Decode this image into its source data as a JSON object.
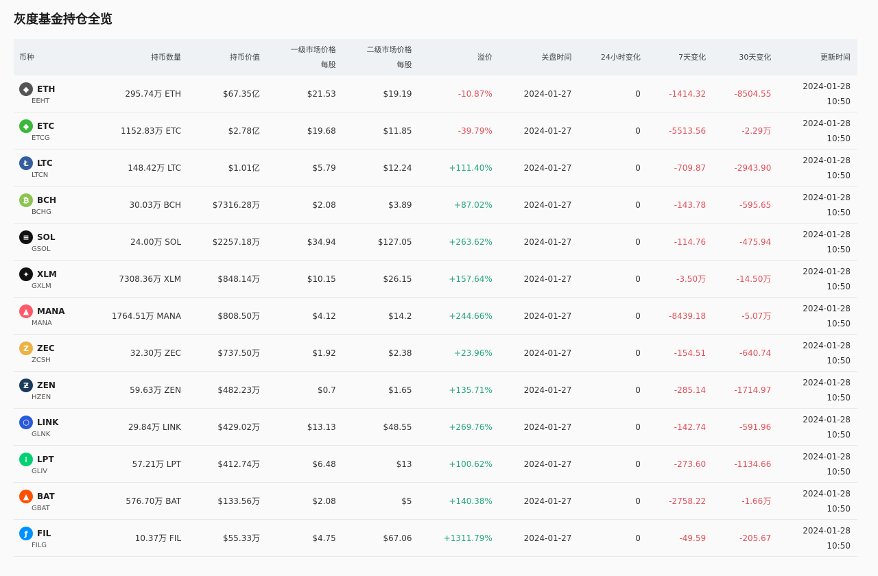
{
  "title": "灰度基金持仓全览",
  "colors": {
    "negative": "#e5505a",
    "positive": "#25a57f",
    "header_bg": "#eef2f5"
  },
  "headers": {
    "coin": "币种",
    "qty": "持币数量",
    "value": "持币价值",
    "primary": "一级市场价格",
    "primary_sub": "每股",
    "secondary": "二级市场价格",
    "secondary_sub": "每股",
    "premium": "溢价",
    "close": "关盘时间",
    "h24": "24小时变化",
    "d7": "7天变化",
    "d30": "30天变化",
    "updated": "更新时间"
  },
  "rows": [
    {
      "sym": "ETH",
      "sub": "EEHT",
      "icon": "ethereum-icon",
      "color": "#555555",
      "glyph": "◆",
      "qty": "295.74万 ETH",
      "value": "$67.35亿",
      "primary": "$21.53",
      "secondary": "$19.19",
      "premium": "-10.87%",
      "close": "2024-01-27",
      "h24": "0",
      "d7": "-1414.32",
      "d30": "-8504.55",
      "date": "2024-01-28",
      "time": "10:50"
    },
    {
      "sym": "ETC",
      "sub": "ETCG",
      "icon": "ethereum-classic-icon",
      "color": "#3ab83a",
      "glyph": "◆",
      "qty": "1152.83万 ETC",
      "value": "$2.78亿",
      "primary": "$19.68",
      "secondary": "$11.85",
      "premium": "-39.79%",
      "close": "2024-01-27",
      "h24": "0",
      "d7": "-5513.56",
      "d30": "-2.29万",
      "date": "2024-01-28",
      "time": "10:50"
    },
    {
      "sym": "LTC",
      "sub": "LTCN",
      "icon": "litecoin-icon",
      "color": "#345d9d",
      "glyph": "Ł",
      "qty": "148.42万 LTC",
      "value": "$1.01亿",
      "primary": "$5.79",
      "secondary": "$12.24",
      "premium": "+111.40%",
      "close": "2024-01-27",
      "h24": "0",
      "d7": "-709.87",
      "d30": "-2943.90",
      "date": "2024-01-28",
      "time": "10:50"
    },
    {
      "sym": "BCH",
      "sub": "BCHG",
      "icon": "bitcoin-cash-icon",
      "color": "#8dc351",
      "glyph": "₿",
      "qty": "30.03万 BCH",
      "value": "$7316.28万",
      "primary": "$2.08",
      "secondary": "$3.89",
      "premium": "+87.02%",
      "close": "2024-01-27",
      "h24": "0",
      "d7": "-143.78",
      "d30": "-595.65",
      "date": "2024-01-28",
      "time": "10:50"
    },
    {
      "sym": "SOL",
      "sub": "GSOL",
      "icon": "solana-icon",
      "color": "#111111",
      "glyph": "≡",
      "qty": "24.00万 SOL",
      "value": "$2257.18万",
      "primary": "$34.94",
      "secondary": "$127.05",
      "premium": "+263.62%",
      "close": "2024-01-27",
      "h24": "0",
      "d7": "-114.76",
      "d30": "-475.94",
      "date": "2024-01-28",
      "time": "10:50"
    },
    {
      "sym": "XLM",
      "sub": "GXLM",
      "icon": "stellar-icon",
      "color": "#111111",
      "glyph": "✦",
      "qty": "7308.36万 XLM",
      "value": "$848.14万",
      "primary": "$10.15",
      "secondary": "$26.15",
      "premium": "+157.64%",
      "close": "2024-01-27",
      "h24": "0",
      "d7": "-3.50万",
      "d30": "-14.50万",
      "date": "2024-01-28",
      "time": "10:50"
    },
    {
      "sym": "MANA",
      "sub": "MANA",
      "icon": "decentraland-icon",
      "color": "#ff5a6a",
      "glyph": "▲",
      "qty": "1764.51万 MANA",
      "value": "$808.50万",
      "primary": "$4.12",
      "secondary": "$14.2",
      "premium": "+244.66%",
      "close": "2024-01-27",
      "h24": "0",
      "d7": "-8439.18",
      "d30": "-5.07万",
      "date": "2024-01-28",
      "time": "10:50"
    },
    {
      "sym": "ZEC",
      "sub": "ZCSH",
      "icon": "zcash-icon",
      "color": "#ecb244",
      "glyph": "Z",
      "qty": "32.30万 ZEC",
      "value": "$737.50万",
      "primary": "$1.92",
      "secondary": "$2.38",
      "premium": "+23.96%",
      "close": "2024-01-27",
      "h24": "0",
      "d7": "-154.51",
      "d30": "-640.74",
      "date": "2024-01-28",
      "time": "10:50"
    },
    {
      "sym": "ZEN",
      "sub": "HZEN",
      "icon": "horizen-icon",
      "color": "#1a3c5a",
      "glyph": "Ƶ",
      "qty": "59.63万 ZEN",
      "value": "$482.23万",
      "primary": "$0.7",
      "secondary": "$1.65",
      "premium": "+135.71%",
      "close": "2024-01-27",
      "h24": "0",
      "d7": "-285.14",
      "d30": "-1714.97",
      "date": "2024-01-28",
      "time": "10:50"
    },
    {
      "sym": "LINK",
      "sub": "GLNK",
      "icon": "chainlink-icon",
      "color": "#2a5ada",
      "glyph": "⬡",
      "qty": "29.84万 LINK",
      "value": "$429.02万",
      "primary": "$13.13",
      "secondary": "$48.55",
      "premium": "+269.76%",
      "close": "2024-01-27",
      "h24": "0",
      "d7": "-142.74",
      "d30": "-591.96",
      "date": "2024-01-28",
      "time": "10:50"
    },
    {
      "sym": "LPT",
      "sub": "GLIV",
      "icon": "livepeer-icon",
      "color": "#00d172",
      "glyph": "⁞",
      "qty": "57.21万 LPT",
      "value": "$412.74万",
      "primary": "$6.48",
      "secondary": "$13",
      "premium": "+100.62%",
      "close": "2024-01-27",
      "h24": "0",
      "d7": "-273.60",
      "d30": "-1134.66",
      "date": "2024-01-28",
      "time": "10:50"
    },
    {
      "sym": "BAT",
      "sub": "GBAT",
      "icon": "basic-attention-token-icon",
      "color": "#ff5000",
      "glyph": "▲",
      "qty": "576.70万 BAT",
      "value": "$133.56万",
      "primary": "$2.08",
      "secondary": "$5",
      "premium": "+140.38%",
      "close": "2024-01-27",
      "h24": "0",
      "d7": "-2758.22",
      "d30": "-1.66万",
      "date": "2024-01-28",
      "time": "10:50"
    },
    {
      "sym": "FIL",
      "sub": "FILG",
      "icon": "filecoin-icon",
      "color": "#0090ff",
      "glyph": "ƒ",
      "qty": "10.37万 FIL",
      "value": "$55.33万",
      "primary": "$4.75",
      "secondary": "$67.06",
      "premium": "+1311.79%",
      "close": "2024-01-27",
      "h24": "0",
      "d7": "-49.59",
      "d30": "-205.67",
      "date": "2024-01-28",
      "time": "10:50"
    }
  ]
}
